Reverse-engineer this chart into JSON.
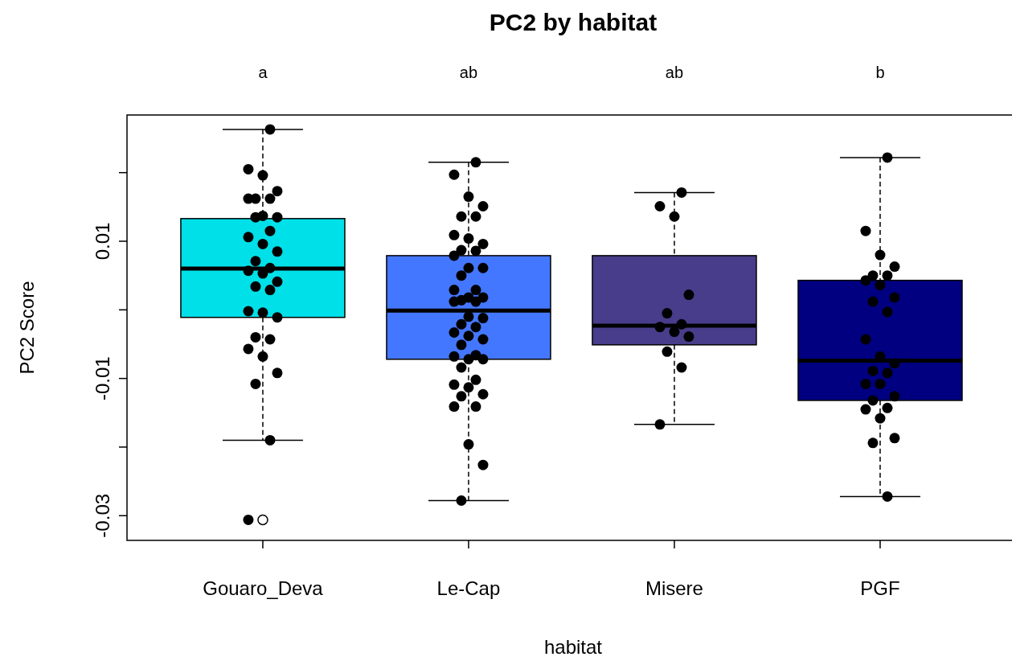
{
  "chart_data": {
    "type": "box",
    "title": "PC2 by habitat",
    "xlabel": "habitat",
    "ylabel": "PC2 Score",
    "categories": [
      "Gouaro_Deva",
      "Le-Cap",
      "Misere",
      "PGF"
    ],
    "colors": [
      "#00e0e8",
      "#4477ff",
      "#483d8b",
      "#000080"
    ],
    "boxes": [
      {
        "low": -0.019,
        "q1": -0.0011,
        "median": 0.006,
        "q3": 0.0133,
        "high": 0.0263,
        "outliers": [
          -0.0306
        ]
      },
      {
        "low": -0.0278,
        "q1": -0.0072,
        "median": -0.0001,
        "q3": 0.0079,
        "high": 0.0215
      },
      {
        "low": -0.0167,
        "q1": -0.0051,
        "median": -0.0023,
        "q3": 0.0079,
        "high": 0.0171
      },
      {
        "low": -0.0272,
        "q1": -0.0132,
        "median": -0.0074,
        "q3": 0.0043,
        "high": 0.0222
      }
    ],
    "series": [
      {
        "type": "scatter",
        "color": "#000000",
        "x": [
          "Gouaro_Deva",
          "Gouaro_Deva",
          "Gouaro_Deva",
          "Gouaro_Deva",
          "Gouaro_Deva",
          "Gouaro_Deva",
          "Gouaro_Deva",
          "Gouaro_Deva",
          "Gouaro_Deva",
          "Gouaro_Deva",
          "Gouaro_Deva",
          "Gouaro_Deva",
          "Gouaro_Deva",
          "Gouaro_Deva",
          "Gouaro_Deva",
          "Gouaro_Deva",
          "Gouaro_Deva",
          "Gouaro_Deva",
          "Gouaro_Deva",
          "Gouaro_Deva",
          "Gouaro_Deva",
          "Gouaro_Deva",
          "Gouaro_Deva",
          "Gouaro_Deva",
          "Gouaro_Deva",
          "Gouaro_Deva",
          "Gouaro_Deva",
          "Gouaro_Deva",
          "Gouaro_Deva",
          "Gouaro_Deva",
          "Gouaro_Deva",
          "Gouaro_Deva"
        ],
        "values": [
          0.0263,
          0.0205,
          0.0196,
          0.0173,
          0.0162,
          0.0162,
          0.0162,
          0.0137,
          0.0135,
          0.0135,
          0.0115,
          0.0106,
          0.0096,
          0.0085,
          0.0071,
          0.0061,
          0.0057,
          0.0053,
          0.0041,
          0.0034,
          0.0029,
          -0.0002,
          -0.0004,
          -0.0011,
          -0.004,
          -0.0043,
          -0.0057,
          -0.0068,
          -0.0092,
          -0.0108,
          -0.019,
          -0.0306
        ]
      },
      {
        "type": "scatter",
        "color": "#000000",
        "x": [
          "Le-Cap",
          "Le-Cap",
          "Le-Cap",
          "Le-Cap",
          "Le-Cap",
          "Le-Cap",
          "Le-Cap",
          "Le-Cap",
          "Le-Cap",
          "Le-Cap",
          "Le-Cap",
          "Le-Cap",
          "Le-Cap",
          "Le-Cap",
          "Le-Cap",
          "Le-Cap",
          "Le-Cap",
          "Le-Cap",
          "Le-Cap",
          "Le-Cap",
          "Le-Cap",
          "Le-Cap",
          "Le-Cap",
          "Le-Cap",
          "Le-Cap",
          "Le-Cap",
          "Le-Cap",
          "Le-Cap",
          "Le-Cap",
          "Le-Cap",
          "Le-Cap",
          "Le-Cap",
          "Le-Cap",
          "Le-Cap",
          "Le-Cap",
          "Le-Cap",
          "Le-Cap",
          "Le-Cap",
          "Le-Cap",
          "Le-Cap",
          "Le-Cap",
          "Le-Cap",
          "Le-Cap",
          "Le-Cap",
          "Le-Cap"
        ],
        "values": [
          0.0215,
          0.0197,
          0.0165,
          0.0151,
          0.0136,
          0.0136,
          0.0109,
          0.0104,
          0.0096,
          0.0087,
          0.0086,
          0.0079,
          0.0061,
          0.0061,
          0.005,
          0.0029,
          0.0029,
          0.0018,
          0.0018,
          0.0014,
          0.0012,
          0.0012,
          -0.001,
          -0.0012,
          -0.0021,
          -0.0025,
          -0.0033,
          -0.0038,
          -0.0043,
          -0.0051,
          -0.0066,
          -0.0068,
          -0.0072,
          -0.0072,
          -0.0084,
          -0.0102,
          -0.0109,
          -0.0113,
          -0.0123,
          -0.0126,
          -0.0141,
          -0.0141,
          -0.0196,
          -0.0226,
          -0.0278
        ]
      },
      {
        "type": "scatter",
        "color": "#000000",
        "x": [
          "Misere",
          "Misere",
          "Misere",
          "Misere",
          "Misere",
          "Misere",
          "Misere",
          "Misere",
          "Misere",
          "Misere",
          "Misere",
          "Misere"
        ],
        "values": [
          0.0171,
          0.0151,
          0.0136,
          0.0022,
          -0.0005,
          -0.0021,
          -0.0025,
          -0.0032,
          -0.0039,
          -0.0061,
          -0.0084,
          -0.0167
        ]
      },
      {
        "type": "scatter",
        "color": "#000000",
        "x": [
          "PGF",
          "PGF",
          "PGF",
          "PGF",
          "PGF",
          "PGF",
          "PGF",
          "PGF",
          "PGF",
          "PGF",
          "PGF",
          "PGF",
          "PGF",
          "PGF",
          "PGF",
          "PGF",
          "PGF",
          "PGF",
          "PGF",
          "PGF",
          "PGF",
          "PGF",
          "PGF",
          "PGF",
          "PGF",
          "PGF"
        ],
        "values": [
          0.0222,
          0.0115,
          0.008,
          0.0063,
          0.005,
          0.005,
          0.0043,
          0.0036,
          0.0018,
          0.0012,
          -0.0003,
          -0.0043,
          -0.0068,
          -0.0078,
          -0.0089,
          -0.0092,
          -0.0108,
          -0.0108,
          -0.0126,
          -0.0132,
          -0.0143,
          -0.0145,
          -0.0158,
          -0.0187,
          -0.0194,
          -0.0272
        ]
      }
    ],
    "marker": "circle",
    "ylim": [
      -0.0336,
      0.0284
    ],
    "yticks": [
      {
        "value": 0.02,
        "label": null
      },
      0.01,
      {
        "value": 0,
        "label": null
      },
      -0.01,
      {
        "value": -0.02,
        "label": null
      },
      -0.03
    ],
    "grid": false,
    "annotations": [
      "a",
      "ab",
      "ab",
      "b"
    ]
  }
}
